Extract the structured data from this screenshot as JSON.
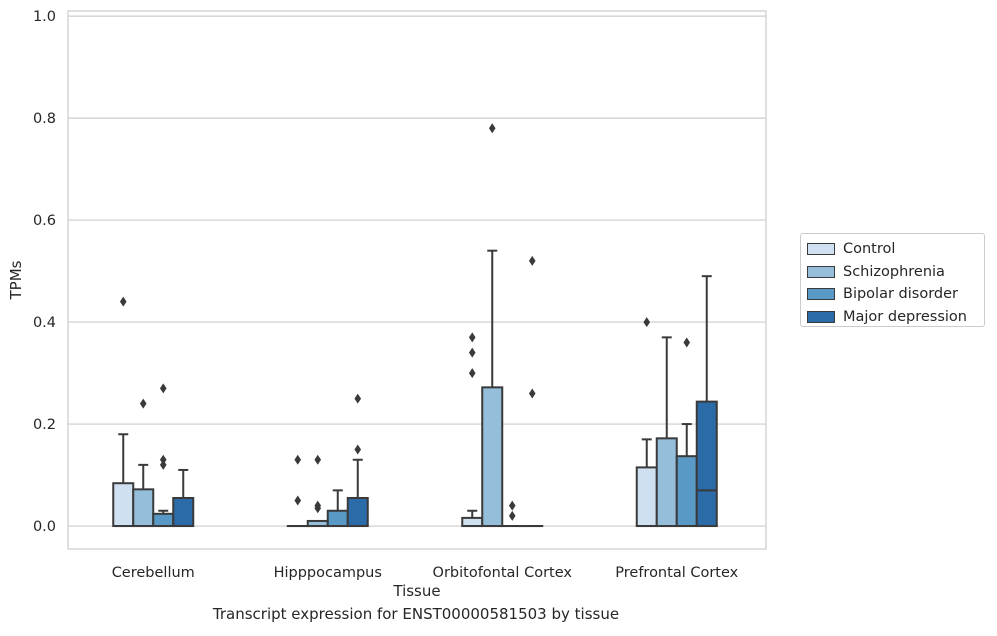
{
  "chart_data": {
    "type": "box",
    "title": "",
    "caption": "Transcript expression for ENST00000581503 by tissue",
    "xlabel": "Tissue",
    "ylabel": "TPMs",
    "ylim": [
      -0.045,
      1.01
    ],
    "yticks": [
      "0.0",
      "0.2",
      "0.4",
      "0.6",
      "0.8",
      "1.0"
    ],
    "ytick_values": [
      0.0,
      0.2,
      0.4,
      0.6,
      0.8,
      1.0
    ],
    "grid": true,
    "legend_position": "right",
    "categories": [
      "Cerebellum",
      "Hipppocampus",
      "Orbitofontal Cortex",
      "Prefrontal Cortex"
    ],
    "series": [
      {
        "name": "Control",
        "color": "#cfe1f0",
        "boxes": [
          {
            "q1": 0.0,
            "median": 0.0,
            "q3": 0.084,
            "whisker_low": 0.0,
            "whisker_high": 0.18,
            "outliers": [
              0.44
            ]
          },
          {
            "q1": 0.0,
            "median": 0.0,
            "q3": 0.0,
            "whisker_low": 0.0,
            "whisker_high": 0.0,
            "outliers": [
              0.13,
              0.05
            ]
          },
          {
            "q1": 0.0,
            "median": 0.0,
            "q3": 0.016,
            "whisker_low": 0.0,
            "whisker_high": 0.03,
            "outliers": [
              0.37,
              0.34,
              0.3
            ]
          },
          {
            "q1": 0.0,
            "median": 0.0,
            "q3": 0.115,
            "whisker_low": 0.0,
            "whisker_high": 0.17,
            "outliers": [
              0.4
            ]
          }
        ]
      },
      {
        "name": "Schizophrenia",
        "color": "#94bed9",
        "boxes": [
          {
            "q1": 0.0,
            "median": 0.0,
            "q3": 0.072,
            "whisker_low": 0.0,
            "whisker_high": 0.12,
            "outliers": [
              0.24
            ]
          },
          {
            "q1": 0.0,
            "median": 0.0,
            "q3": 0.01,
            "whisker_low": 0.0,
            "whisker_high": 0.01,
            "outliers": [
              0.13,
              0.04,
              0.035
            ]
          },
          {
            "q1": 0.0,
            "median": 0.0,
            "q3": 0.272,
            "whisker_low": 0.0,
            "whisker_high": 0.54,
            "outliers": [
              0.78
            ]
          },
          {
            "q1": 0.0,
            "median": 0.0,
            "q3": 0.172,
            "whisker_low": 0.0,
            "whisker_high": 0.37,
            "outliers": []
          }
        ]
      },
      {
        "name": "Bipolar disorder",
        "color": "#5999c6",
        "boxes": [
          {
            "q1": 0.0,
            "median": 0.0,
            "q3": 0.024,
            "whisker_low": 0.0,
            "whisker_high": 0.03,
            "outliers": [
              0.27,
              0.13,
              0.12
            ]
          },
          {
            "q1": 0.0,
            "median": 0.0,
            "q3": 0.03,
            "whisker_low": 0.0,
            "whisker_high": 0.07,
            "outliers": []
          },
          {
            "q1": 0.0,
            "median": 0.0,
            "q3": 0.0,
            "whisker_low": 0.0,
            "whisker_high": 0.0,
            "outliers": [
              0.04,
              0.02
            ]
          },
          {
            "q1": 0.0,
            "median": 0.0,
            "q3": 0.137,
            "whisker_low": 0.0,
            "whisker_high": 0.2,
            "outliers": [
              0.36
            ]
          }
        ]
      },
      {
        "name": "Major depression",
        "color": "#2a6ba8",
        "boxes": [
          {
            "q1": 0.0,
            "median": 0.0,
            "q3": 0.055,
            "whisker_low": 0.0,
            "whisker_high": 0.11,
            "outliers": []
          },
          {
            "q1": 0.0,
            "median": 0.0,
            "q3": 0.055,
            "whisker_low": 0.0,
            "whisker_high": 0.13,
            "outliers": [
              0.25,
              0.15
            ]
          },
          {
            "q1": 0.0,
            "median": 0.0,
            "q3": 0.0,
            "whisker_low": 0.0,
            "whisker_high": 0.0,
            "outliers": [
              0.52,
              0.26
            ]
          },
          {
            "q1": 0.0,
            "median": 0.07,
            "q3": 0.244,
            "whisker_low": 0.0,
            "whisker_high": 0.49,
            "outliers": []
          }
        ]
      }
    ]
  }
}
